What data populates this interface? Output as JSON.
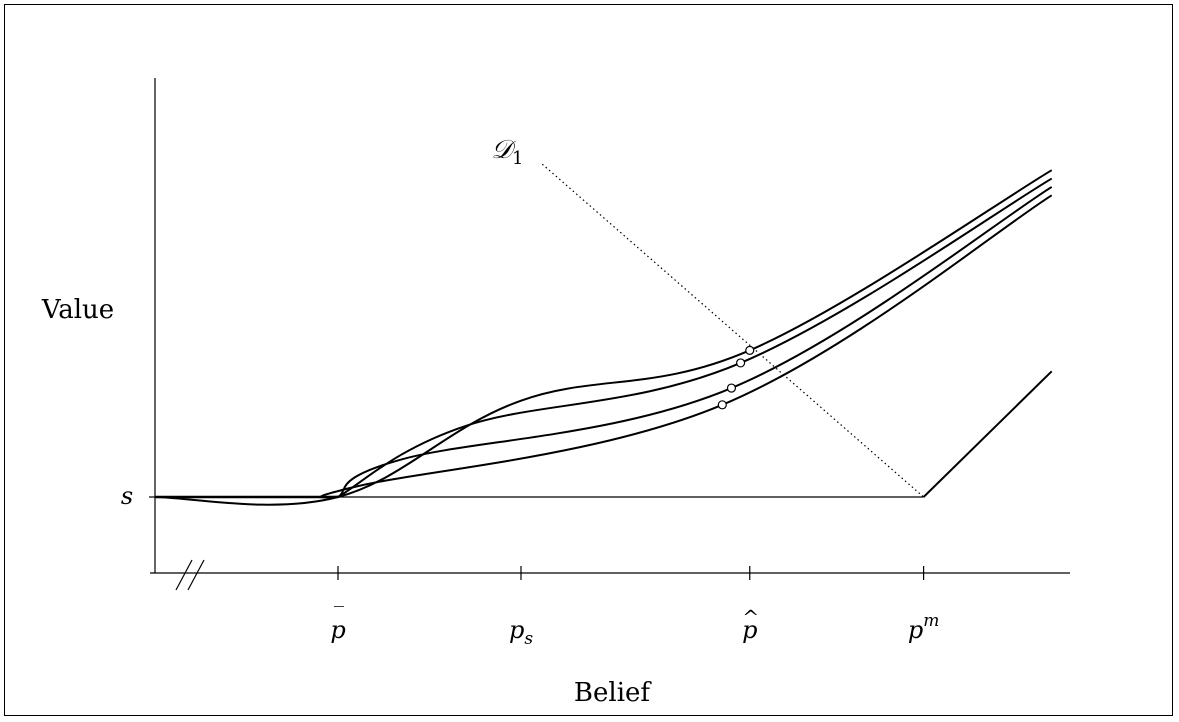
{
  "chart_data": {
    "type": "line",
    "title": "",
    "xlabel": "Belief",
    "ylabel": "Value",
    "y_tick_label": "s",
    "x_ticks": [
      {
        "label": "p̄",
        "base": "p",
        "accent": "‾",
        "sub": "",
        "sup": "",
        "x": 0.2
      },
      {
        "label": "p_s",
        "base": "p",
        "accent": "",
        "sub": "s",
        "sup": "",
        "x": 0.4
      },
      {
        "label": "p̂",
        "base": "p",
        "accent": "^",
        "sub": "",
        "sup": "",
        "x": 0.65
      },
      {
        "label": "p^m",
        "base": "p",
        "accent": "",
        "sub": "",
        "sup": "m",
        "x": 0.84
      }
    ],
    "axis_break": true,
    "xlim": [
      0,
      1
    ],
    "ylim": [
      -0.1,
      1.0
    ],
    "s_level": 0,
    "annotation": {
      "label": "D_1",
      "base": "𝒟",
      "sub": "1",
      "line_from": [
        0.42,
        0.78
      ],
      "line_to": [
        0.84,
        0.0
      ],
      "style": "dotted"
    },
    "series": [
      {
        "points": [
          [
            0.0,
            0.0
          ],
          [
            0.2,
            0.0
          ],
          [
            0.4,
            0.23
          ],
          [
            0.65,
            0.35
          ],
          [
            0.98,
            0.78
          ]
        ],
        "marker_x": 0.65
      },
      {
        "points": [
          [
            0.2,
            0.0
          ],
          [
            0.34,
            0.17
          ],
          [
            0.64,
            0.32
          ],
          [
            0.98,
            0.76
          ]
        ],
        "marker_x": 0.64
      },
      {
        "points": [
          [
            0.2,
            0.0
          ],
          [
            0.27,
            0.09
          ],
          [
            0.63,
            0.26
          ],
          [
            0.98,
            0.74
          ]
        ],
        "marker_x": 0.63
      },
      {
        "points": [
          [
            0.2,
            0.0
          ],
          [
            0.22,
            0.025
          ],
          [
            0.62,
            0.22
          ],
          [
            0.98,
            0.72
          ]
        ],
        "marker_x": 0.62
      },
      {
        "points": [
          [
            0.84,
            0.0
          ],
          [
            0.98,
            0.3
          ]
        ],
        "marker_x": null
      }
    ],
    "grid": false,
    "legend": "none"
  }
}
